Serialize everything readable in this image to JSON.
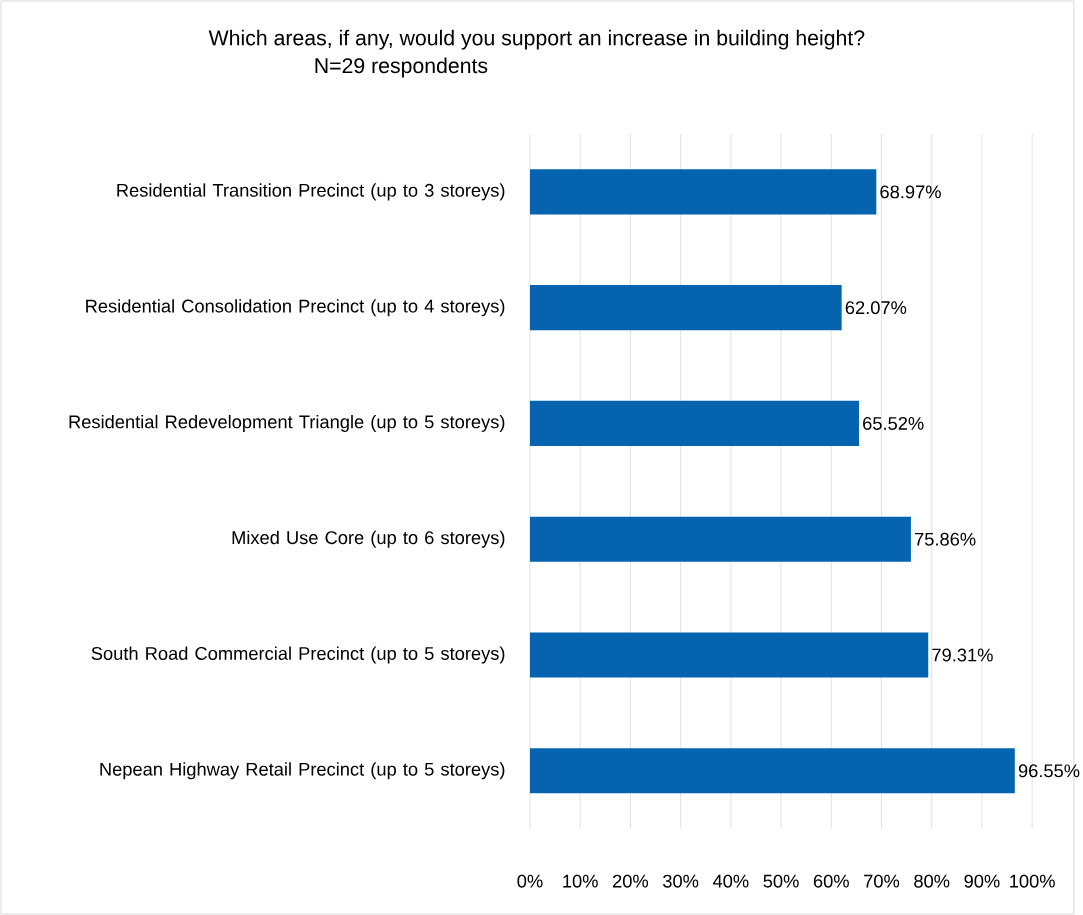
{
  "chart_data": {
    "type": "bar",
    "orientation": "horizontal",
    "title": "Which areas, if any, would you support an increase in building height?",
    "subtitle": "N=29 respondents",
    "categories": [
      "Residential Transition Precinct (up to 3 storeys)",
      "Residential Consolidation Precinct (up to 4 storeys)",
      "Residential Redevelopment Triangle (up to 5 storeys)",
      "Mixed Use Core (up to 6 storeys)",
      "South Road Commercial Precinct (up to 5 storeys)",
      "Nepean Highway Retail Precinct (up to 5 storeys)"
    ],
    "values": [
      68.97,
      62.07,
      65.52,
      75.86,
      79.31,
      96.55
    ],
    "value_labels": [
      "68.97%",
      "62.07%",
      "65.52%",
      "75.86%",
      "79.31%",
      "96.55%"
    ],
    "color": "#0563b0",
    "xlim": [
      0,
      100
    ],
    "xticks": [
      {
        "value": 0,
        "label": "0%"
      },
      {
        "value": 10,
        "label": "10%"
      },
      {
        "value": 20,
        "label": "20%"
      },
      {
        "value": 30,
        "label": "30%"
      },
      {
        "value": 40,
        "label": "40%"
      },
      {
        "value": 50,
        "label": "50%"
      },
      {
        "value": 60,
        "label": "60%"
      },
      {
        "value": 70,
        "label": "70%"
      },
      {
        "value": 80,
        "label": "80%"
      },
      {
        "value": 90,
        "label": "90%"
      },
      {
        "value": 100,
        "label": "100%"
      }
    ],
    "grid": "x"
  }
}
